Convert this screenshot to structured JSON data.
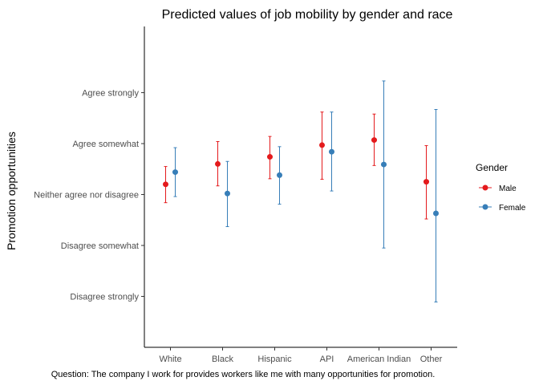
{
  "chart_data": {
    "type": "scatter",
    "title": "Predicted values of job mobility by gender and race",
    "xlabel": "",
    "ylabel": "Promotion opportunities",
    "caption": "Question: The company I work for provides workers like me with many opportunities for promotion.",
    "categories": [
      "White",
      "Black",
      "Hispanic",
      "API",
      "American Indian",
      "Other"
    ],
    "y_ticks": [
      1,
      2,
      3,
      4,
      5
    ],
    "y_tick_labels": [
      "Disagree strongly",
      "Disagree somewhat",
      "Neither agree nor disagree",
      "Agree somewhat",
      "Agree strongly"
    ],
    "ylim": [
      0.0,
      6.3
    ],
    "grid": false,
    "legend": {
      "title": "Gender",
      "position": "right"
    },
    "series": [
      {
        "name": "Male",
        "color": "#e41a1c",
        "values": [
          3.2,
          3.6,
          3.74,
          3.97,
          4.07,
          3.25
        ],
        "lower": [
          2.84,
          3.17,
          3.31,
          3.3,
          3.57,
          2.52
        ],
        "upper": [
          3.55,
          4.04,
          4.14,
          4.62,
          4.58,
          3.96
        ]
      },
      {
        "name": "Female",
        "color": "#377eb8",
        "values": [
          3.44,
          3.02,
          3.38,
          3.84,
          3.59,
          2.63
        ],
        "lower": [
          2.96,
          2.37,
          2.81,
          3.07,
          1.95,
          0.89
        ],
        "upper": [
          3.92,
          3.65,
          3.94,
          4.62,
          5.23,
          4.67
        ]
      }
    ]
  }
}
